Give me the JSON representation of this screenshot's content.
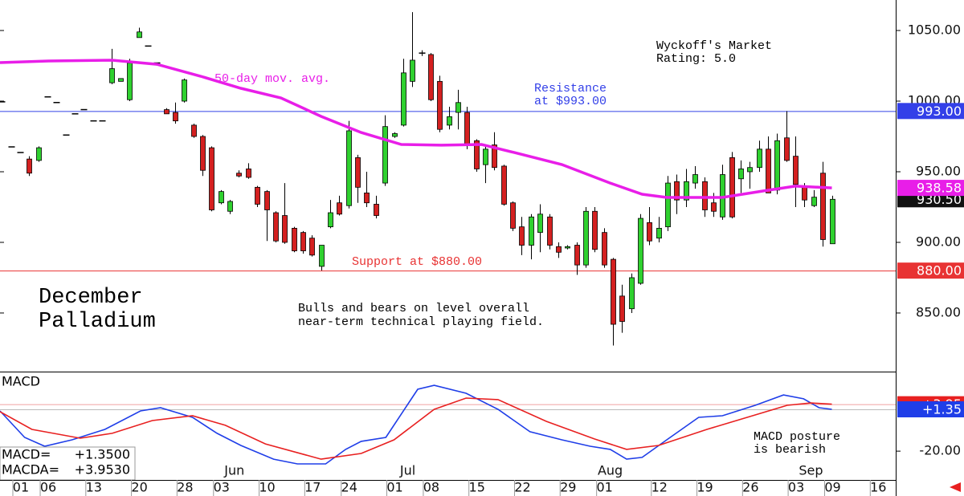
{
  "chart_data": [
    {
      "type": "candlestick",
      "title_lines": [
        "December",
        "Palladium"
      ],
      "x": [
        0,
        1,
        2,
        3,
        4,
        5,
        6,
        7,
        8,
        9,
        10,
        11,
        12,
        13,
        14,
        15,
        16,
        17,
        18,
        19,
        20,
        21,
        22,
        23,
        24,
        25,
        26,
        27,
        28,
        29,
        30,
        31,
        32,
        33,
        34,
        35,
        36,
        37,
        38,
        39,
        40,
        41,
        42,
        43,
        44,
        45,
        46,
        47,
        48,
        49,
        50,
        51,
        52,
        53,
        54,
        55,
        56,
        57,
        58,
        59,
        60,
        61,
        62,
        63,
        64,
        65,
        66,
        67,
        68,
        69,
        70,
        71,
        72,
        73,
        74,
        75,
        76,
        77,
        78,
        79,
        80,
        81,
        82,
        83,
        84,
        85,
        86,
        87,
        88,
        89,
        90,
        91
      ],
      "open": [
        999.5,
        967.6,
        963.6,
        959,
        958,
        1003,
        999,
        976,
        991,
        994,
        986,
        986,
        1013,
        1014,
        1001,
        1045,
        1039,
        1027,
        994,
        992,
        1000,
        983,
        975,
        967,
        928,
        922,
        949,
        952,
        939,
        936,
        921,
        919,
        910,
        907,
        903,
        883,
        911,
        928,
        926,
        960,
        935,
        927,
        942,
        975,
        983,
        1014,
        1034,
        1033,
        1014,
        983,
        992,
        992,
        972,
        955,
        969,
        954,
        928,
        911,
        898,
        907,
        918,
        897,
        896,
        898,
        884,
        922,
        907,
        888,
        862,
        853,
        871,
        914,
        903,
        911,
        943,
        930,
        942,
        943,
        928,
        918,
        960,
        945,
        950,
        953,
        966,
        937,
        974,
        961,
        939,
        926,
        949,
        899
      ],
      "high": [
        999.5,
        967.6,
        963.6,
        961,
        968,
        1003,
        999,
        976,
        991,
        994,
        986,
        986,
        1037,
        1016,
        1030,
        1052,
        1039,
        1027,
        995,
        999,
        1016,
        984,
        976,
        968,
        937,
        930,
        951,
        956,
        940,
        937,
        922,
        942,
        911,
        908,
        905,
        898,
        930,
        933,
        986,
        962,
        950,
        933,
        990,
        978,
        1030,
        1063,
        1036,
        1034,
        1018,
        996,
        1008,
        996,
        973,
        968,
        978,
        955,
        929,
        918,
        920,
        927,
        920,
        900,
        898,
        900,
        925,
        925,
        910,
        889,
        870,
        878,
        920,
        925,
        918,
        947,
        948,
        952,
        954,
        946,
        935,
        955,
        964,
        958,
        957,
        972,
        975,
        977,
        993,
        975,
        942,
        937,
        957,
        933
      ],
      "low": [
        999.5,
        967.6,
        963.6,
        947,
        957,
        1003,
        999,
        976,
        991,
        994,
        986,
        986,
        1012,
        1014,
        1000,
        1045,
        1039,
        1027,
        991,
        984,
        999,
        974,
        947,
        922,
        927,
        920,
        946,
        945,
        925,
        901,
        900,
        899,
        893,
        892,
        890,
        880,
        910,
        919,
        924,
        928,
        925,
        917,
        940,
        974,
        982,
        1010,
        1032,
        1000,
        978,
        980,
        980,
        966,
        950,
        942,
        951,
        926,
        908,
        891,
        888,
        893,
        895,
        889,
        895,
        877,
        882,
        893,
        882,
        827,
        836,
        850,
        870,
        898,
        900,
        908,
        920,
        925,
        938,
        918,
        918,
        916,
        917,
        935,
        938,
        950,
        935,
        934,
        957,
        925,
        925,
        925,
        897,
        899
      ],
      "close": [
        999.5,
        967.6,
        963.6,
        949,
        967,
        1003,
        999,
        976,
        991,
        994,
        986,
        986,
        1023,
        1016,
        1027,
        1049,
        1039,
        1027,
        991,
        986,
        1015,
        975,
        951,
        923,
        936,
        929,
        947,
        946,
        927,
        923,
        901,
        900,
        894,
        894,
        891,
        898,
        921,
        920,
        979,
        939,
        928,
        919,
        982,
        977,
        1020,
        1029,
        1034,
        1001,
        980,
        989,
        999,
        969,
        952,
        966,
        953,
        927,
        910,
        898,
        918,
        920,
        898,
        893,
        897,
        884,
        922,
        895,
        884,
        842,
        844,
        875,
        917,
        901,
        910,
        942,
        930,
        943,
        948,
        923,
        922,
        948,
        918,
        952,
        953,
        966,
        935,
        972,
        958,
        941,
        930,
        932,
        902,
        930.5
      ],
      "up_color": "#2fd12f",
      "down_color": "#d42020",
      "xlim": [
        -0.2,
        98
      ],
      "ylim": [
        808.5,
        1071.6
      ],
      "yticks": [
        {
          "value": 850,
          "label": "850.00"
        },
        {
          "value": 900,
          "label": "900.00"
        },
        {
          "value": 950,
          "label": "950.00"
        },
        {
          "value": 1000,
          "label": "1000.00"
        },
        {
          "value": 1050,
          "label": "1050.00"
        }
      ],
      "xticks": [
        {
          "value": 2,
          "label": "01"
        },
        {
          "value": 5,
          "label": "06"
        },
        {
          "value": 10,
          "label": "13"
        },
        {
          "value": 15,
          "label": "20"
        },
        {
          "value": 20,
          "label": "28"
        },
        {
          "value": 24,
          "label": "03"
        },
        {
          "value": 29,
          "label": "10"
        },
        {
          "value": 34,
          "label": "17"
        },
        {
          "value": 38,
          "label": "24"
        },
        {
          "value": 43,
          "label": "01"
        },
        {
          "value": 47,
          "label": "08"
        },
        {
          "value": 52,
          "label": "15"
        },
        {
          "value": 57,
          "label": "22"
        },
        {
          "value": 62,
          "label": "29"
        },
        {
          "value": 66,
          "label": "01"
        },
        {
          "value": 72,
          "label": "12"
        },
        {
          "value": 77,
          "label": "19"
        },
        {
          "value": 82,
          "label": "26"
        },
        {
          "value": 87,
          "label": "03"
        },
        {
          "value": 91,
          "label": "09"
        },
        {
          "value": 96,
          "label": "16"
        }
      ],
      "month_labels": [
        {
          "value": 25.5,
          "label": "Jun"
        },
        {
          "value": 44.5,
          "label": "Jul"
        },
        {
          "value": 66.7,
          "label": "Aug"
        },
        {
          "value": 88.7,
          "label": "Sep"
        }
      ],
      "moving_average": {
        "name": "50-day mov. avg.",
        "color": "#e81ee8",
        "x": [
          -0.2,
          5.1,
          12.1,
          17,
          21.8,
          26.2,
          30.6,
          35,
          39.4,
          43.8,
          48.2,
          52.6,
          56.2,
          61.4,
          66.7,
          70.2,
          72.9,
          79,
          83.5,
          87,
          91
        ],
        "values": [
          1027.3,
          1028.4,
          1029,
          1026.1,
          1017.6,
          1009.1,
          1002.3,
          989.2,
          977.8,
          969.3,
          968.8,
          969.3,
          963.6,
          955.1,
          942,
          934.1,
          931.8,
          931.8,
          936.4,
          939.8,
          938.58
        ]
      },
      "levels": [
        {
          "value": 993,
          "label": "993.00",
          "color": "#3340e8"
        },
        {
          "value": 880,
          "label": "880.00",
          "color": "#e83333"
        }
      ],
      "tags": [
        {
          "value": 930.5,
          "label": "930.50",
          "color": "#111111"
        },
        {
          "value": 938.58,
          "label": "938.58",
          "color": "#e81ee8"
        }
      ],
      "annotations": {
        "rating": [
          "Wyckoff's Market",
          "Rating: 5.0"
        ],
        "resistance": [
          "Resistance",
          "at $993.00"
        ],
        "support": "Support at $880.00",
        "comment": [
          "Bulls and bears on level overall",
          "near-term technical playing field."
        ]
      }
    },
    {
      "type": "line",
      "title": "MACD",
      "xlim": [
        -0.2,
        98
      ],
      "ylim": [
        -34.7,
        20.6
      ],
      "yticks": [
        {
          "value": -20,
          "label": "-20.00"
        }
      ],
      "series": [
        {
          "name": "MACD=",
          "value_label": "+1.3500",
          "color": "#1f3ee8",
          "x": [
            -0.2,
            2.5,
            4.7,
            7.7,
            11.3,
            15.2,
            17.4,
            20.9,
            23.6,
            26.2,
            29.8,
            32.4,
            35.5,
            37.7,
            39.4,
            42.1,
            45.6,
            47.4,
            50.9,
            54.4,
            57.9,
            61.4,
            64.5,
            66.7,
            68.5,
            70.2,
            72.9,
            76.4,
            79,
            82.6,
            85.7,
            87.9,
            89.6,
            91
          ],
          "values": [
            0.53,
            -13,
            -17.5,
            -14.2,
            -8.9,
            0.53,
            2.17,
            -2.75,
            -10.9,
            -17.1,
            -24.1,
            -26.5,
            -26.5,
            -19.1,
            -15,
            -13,
            11.6,
            13.6,
            9.55,
            1.35,
            -10.1,
            -14.2,
            -17.5,
            -19.1,
            -24.1,
            -23.2,
            -14.2,
            -2.75,
            -1.93,
            3.4,
            8.7,
            6.7,
            2.17,
            1.35
          ]
        },
        {
          "name": "MACDA=",
          "value_label": "+3.9530",
          "color": "#e82020",
          "x": [
            -0.2,
            3.3,
            8.6,
            12.1,
            16.5,
            20.9,
            24.5,
            28.9,
            35,
            39.4,
            43,
            47.4,
            50.9,
            54.4,
            59.7,
            65,
            68.5,
            72,
            77.3,
            82.6,
            86.1,
            88.7,
            91
          ],
          "values": [
            0.12,
            -8.9,
            -13.4,
            -10.9,
            -4.4,
            -1.93,
            -6.8,
            -16.3,
            -24.1,
            -21.2,
            -14.2,
            1.35,
            7.1,
            6.3,
            -4.8,
            -13.8,
            -19.1,
            -17.1,
            -8.9,
            -1.5,
            3.4,
            4.6,
            3.953
          ]
        }
      ],
      "tags": [
        {
          "value": 3.95,
          "label": "+3.95",
          "color": "#e82020"
        },
        {
          "value": 1.35,
          "label": "+1.35",
          "color": "#1f3ee8"
        }
      ],
      "annotation": [
        "MACD posture",
        "is bearish"
      ]
    }
  ]
}
